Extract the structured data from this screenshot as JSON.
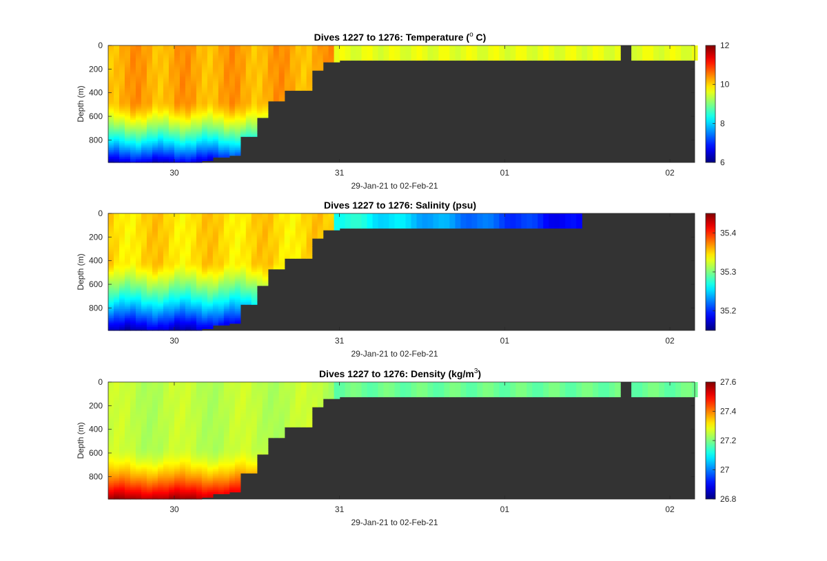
{
  "colors": {
    "bathymetry_mask": "#333333",
    "frame": "#262626",
    "colormap": "jet"
  },
  "chart_data": [
    {
      "type": "heatmap",
      "title_main": "Dives 1227 to 1276: Temperature (",
      "title_sup": "o",
      "title_tail": " C)",
      "xlabel": "29-Jan-21 to 02-Feb-21",
      "ylabel": "Depth (m)",
      "variable": "temperature",
      "unit": "°C",
      "xlim": [
        "2021-01-29T14:24",
        "2021-02-02T03:36"
      ],
      "ylim": [
        990,
        0
      ],
      "yreversed": true,
      "yticks": [
        0,
        200,
        400,
        600,
        800
      ],
      "xticks": [
        {
          "date": "2021-01-30",
          "label": "30"
        },
        {
          "date": "2021-01-31",
          "label": "31"
        },
        {
          "date": "2021-02-01",
          "label": "01"
        },
        {
          "date": "2021-02-02",
          "label": "02"
        }
      ],
      "clim": [
        6,
        12
      ],
      "cticks": [
        6,
        8,
        10,
        12
      ],
      "gaps": [
        {
          "start": "2021-02-01T16:24",
          "end": "2021-02-01T18:00"
        }
      ]
    },
    {
      "type": "heatmap",
      "title_main": "Dives 1227 to 1276: Salinity (psu)",
      "xlabel": "29-Jan-21 to 02-Feb-21",
      "ylabel": "Depth (m)",
      "variable": "salinity",
      "unit": "psu",
      "xlim": [
        "2021-01-29T14:24",
        "2021-02-02T03:36"
      ],
      "ylim": [
        990,
        0
      ],
      "yreversed": true,
      "yticks": [
        0,
        200,
        400,
        600,
        800
      ],
      "xticks": [
        {
          "date": "2021-01-30",
          "label": "30"
        },
        {
          "date": "2021-01-31",
          "label": "31"
        },
        {
          "date": "2021-02-01",
          "label": "01"
        },
        {
          "date": "2021-02-02",
          "label": "02"
        }
      ],
      "clim": [
        35.15,
        35.45
      ],
      "cticks": [
        35.2,
        35.3,
        35.4
      ],
      "valid_until": "2021-02-01T11:00"
    },
    {
      "type": "heatmap",
      "title_main": "Dives 1227 to 1276: Density (kg/m",
      "title_sup": "3",
      "title_tail": ")",
      "xlabel": "29-Jan-21 to 02-Feb-21",
      "ylabel": "Depth (m)",
      "variable": "density",
      "unit": "kg/m3",
      "xlim": [
        "2021-01-29T14:24",
        "2021-02-02T03:36"
      ],
      "ylim": [
        990,
        0
      ],
      "yreversed": true,
      "yticks": [
        0,
        200,
        400,
        600,
        800
      ],
      "xticks": [
        {
          "date": "2021-01-30",
          "label": "30"
        },
        {
          "date": "2021-01-31",
          "label": "31"
        },
        {
          "date": "2021-02-01",
          "label": "01"
        },
        {
          "date": "2021-02-02",
          "label": "02"
        }
      ],
      "clim": [
        26.8,
        27.6
      ],
      "cticks": [
        26.8,
        27,
        27.2,
        27.4,
        27.6
      ],
      "gaps": [
        {
          "start": "2021-02-01T16:24",
          "end": "2021-02-01T18:00"
        }
      ]
    }
  ],
  "profile_depths": [
    {
      "time": "2021-01-29T14:24",
      "max_depth": 990
    },
    {
      "time": "2021-01-29T19:00",
      "max_depth": 990
    },
    {
      "time": "2021-01-30T02:00",
      "max_depth": 990
    },
    {
      "time": "2021-01-30T04:00",
      "max_depth": 975
    },
    {
      "time": "2021-01-30T06:00",
      "max_depth": 945
    },
    {
      "time": "2021-01-30T08:00",
      "max_depth": 930
    },
    {
      "time": "2021-01-30T10:00",
      "max_depth": 770
    },
    {
      "time": "2021-01-30T12:00",
      "max_depth": 610
    },
    {
      "time": "2021-01-30T14:00",
      "max_depth": 470
    },
    {
      "time": "2021-01-30T16:00",
      "max_depth": 380
    },
    {
      "time": "2021-01-30T18:00",
      "max_depth": 380
    },
    {
      "time": "2021-01-30T20:00",
      "max_depth": 210
    },
    {
      "time": "2021-01-30T22:00",
      "max_depth": 140
    },
    {
      "time": "2021-01-31T00:00",
      "max_depth": 125
    },
    {
      "time": "2021-02-01T16:24",
      "max_depth": 125
    },
    {
      "time": "2021-02-02T03:36",
      "max_depth": 125
    }
  ]
}
